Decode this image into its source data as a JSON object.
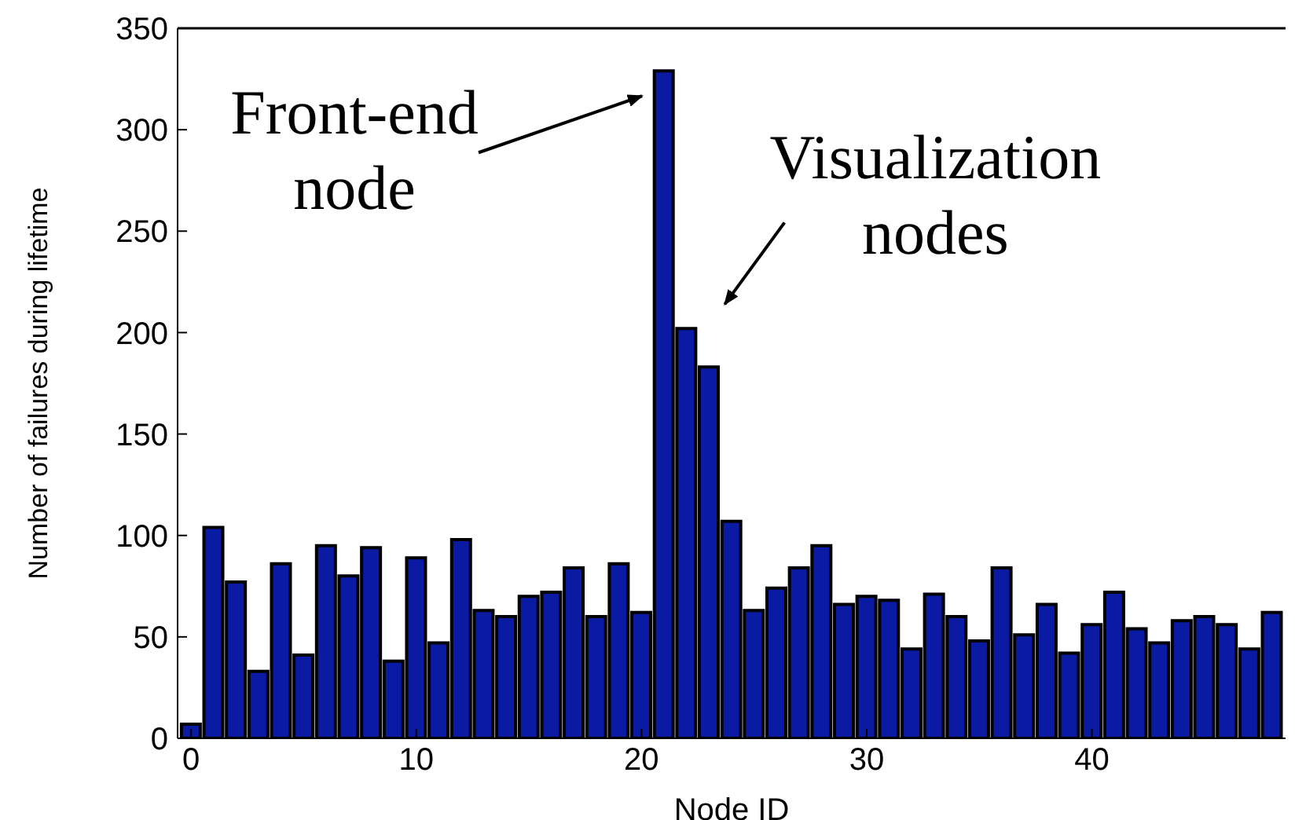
{
  "chart_data": {
    "type": "bar",
    "xlabel": "Node ID",
    "ylabel": "Number of failures during lifetime",
    "x": [
      0,
      1,
      2,
      3,
      4,
      5,
      6,
      7,
      8,
      9,
      10,
      11,
      12,
      13,
      14,
      15,
      16,
      17,
      18,
      19,
      20,
      21,
      22,
      23,
      24,
      25,
      26,
      27,
      28,
      29,
      30,
      31,
      32,
      33,
      34,
      35,
      36,
      37,
      38,
      39,
      40,
      41,
      42,
      43,
      44,
      45,
      46,
      47,
      48
    ],
    "values": [
      7,
      104,
      77,
      33,
      86,
      41,
      95,
      80,
      94,
      38,
      89,
      47,
      98,
      63,
      60,
      70,
      72,
      84,
      60,
      86,
      62,
      329,
      202,
      183,
      107,
      63,
      74,
      84,
      95,
      66,
      70,
      68,
      44,
      71,
      60,
      48,
      84,
      51,
      66,
      42,
      56,
      72,
      54,
      47,
      58,
      60,
      56,
      44,
      62
    ],
    "color": "#0a1aa3",
    "xlim": [
      -0.6,
      48.6
    ],
    "xticks": [
      0,
      10,
      20,
      30,
      40
    ],
    "ylim": [
      0,
      350
    ],
    "yticks": [
      0,
      50,
      100,
      150,
      200,
      250,
      300,
      350
    ],
    "grid": false,
    "annotations": [
      {
        "text": "Front-end node",
        "x": 21,
        "y": 329
      },
      {
        "text": "Visualization nodes",
        "x": 23,
        "y": 183
      }
    ]
  }
}
